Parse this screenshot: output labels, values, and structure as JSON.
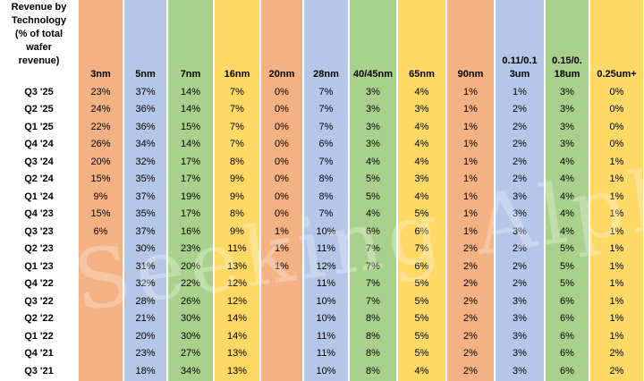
{
  "table": {
    "corner_label": "Revenue by\nTechnology\n(% of total\nwafer\nrevenue)",
    "columns": [
      {
        "label": "3nm",
        "color": "orange"
      },
      {
        "label": "5nm",
        "color": "blue"
      },
      {
        "label": "7nm",
        "color": "green"
      },
      {
        "label": "16nm",
        "color": "yellow"
      },
      {
        "label": "20nm",
        "color": "orange"
      },
      {
        "label": "28nm",
        "color": "blue"
      },
      {
        "label": "40/45nm",
        "color": "green"
      },
      {
        "label": "65nm",
        "color": "yellow"
      },
      {
        "label": "90nm",
        "color": "orange"
      },
      {
        "label": "0.11/0.1\n3um",
        "color": "blue"
      },
      {
        "label": "0.15/0.\n18um",
        "color": "green"
      },
      {
        "label": "0.25um+",
        "color": "yellow"
      }
    ],
    "rows": [
      {
        "period": "Q3 '25",
        "values": [
          "23%",
          "37%",
          "14%",
          "7%",
          "0%",
          "7%",
          "3%",
          "4%",
          "1%",
          "1%",
          "3%",
          "0%"
        ]
      },
      {
        "period": "Q2 '25",
        "values": [
          "24%",
          "36%",
          "14%",
          "7%",
          "0%",
          "7%",
          "3%",
          "3%",
          "1%",
          "2%",
          "3%",
          "0%"
        ]
      },
      {
        "period": "Q1 '25",
        "values": [
          "22%",
          "36%",
          "15%",
          "7%",
          "0%",
          "7%",
          "3%",
          "4%",
          "1%",
          "2%",
          "3%",
          "0%"
        ]
      },
      {
        "period": "Q4 '24",
        "values": [
          "26%",
          "34%",
          "14%",
          "7%",
          "0%",
          "6%",
          "3%",
          "4%",
          "1%",
          "2%",
          "3%",
          "0%"
        ]
      },
      {
        "period": "Q3 '24",
        "values": [
          "20%",
          "32%",
          "17%",
          "8%",
          "0%",
          "7%",
          "4%",
          "4%",
          "1%",
          "2%",
          "4%",
          "1%"
        ]
      },
      {
        "period": "Q2 '24",
        "values": [
          "15%",
          "35%",
          "17%",
          "9%",
          "0%",
          "8%",
          "5%",
          "3%",
          "1%",
          "2%",
          "4%",
          "1%"
        ]
      },
      {
        "period": "Q1 '24",
        "values": [
          "9%",
          "37%",
          "19%",
          "9%",
          "0%",
          "8%",
          "5%",
          "4%",
          "1%",
          "3%",
          "4%",
          "1%"
        ]
      },
      {
        "period": "Q4 '23",
        "values": [
          "15%",
          "35%",
          "17%",
          "8%",
          "0%",
          "7%",
          "4%",
          "5%",
          "1%",
          "3%",
          "4%",
          "1%"
        ]
      },
      {
        "period": "Q3 '23",
        "values": [
          "6%",
          "37%",
          "16%",
          "9%",
          "1%",
          "10%",
          "6%",
          "6%",
          "1%",
          "3%",
          "4%",
          "1%"
        ]
      },
      {
        "period": "Q2 '23",
        "values": [
          "",
          "30%",
          "23%",
          "11%",
          "1%",
          "11%",
          "7%",
          "7%",
          "2%",
          "2%",
          "5%",
          "1%"
        ]
      },
      {
        "period": "Q1 '23",
        "values": [
          "",
          "31%",
          "20%",
          "13%",
          "1%",
          "12%",
          "7%",
          "6%",
          "2%",
          "2%",
          "5%",
          "1%"
        ]
      },
      {
        "period": "Q4 '22",
        "values": [
          "",
          "32%",
          "22%",
          "12%",
          "",
          "11%",
          "7%",
          "5%",
          "2%",
          "2%",
          "5%",
          "1%"
        ]
      },
      {
        "period": "Q3 '22",
        "values": [
          "",
          "28%",
          "26%",
          "12%",
          "",
          "10%",
          "7%",
          "5%",
          "2%",
          "3%",
          "6%",
          "1%"
        ]
      },
      {
        "period": "Q2 '22",
        "values": [
          "",
          "21%",
          "30%",
          "14%",
          "",
          "10%",
          "8%",
          "5%",
          "2%",
          "3%",
          "6%",
          "1%"
        ]
      },
      {
        "period": "Q1 '22",
        "values": [
          "",
          "20%",
          "30%",
          "14%",
          "",
          "11%",
          "8%",
          "5%",
          "2%",
          "3%",
          "6%",
          "1%"
        ]
      },
      {
        "period": "Q4 '21",
        "values": [
          "",
          "23%",
          "27%",
          "13%",
          "",
          "11%",
          "8%",
          "5%",
          "2%",
          "3%",
          "6%",
          "2%"
        ]
      },
      {
        "period": "Q3 '21",
        "values": [
          "",
          "18%",
          "34%",
          "13%",
          "",
          "10%",
          "8%",
          "4%",
          "2%",
          "3%",
          "6%",
          "2%"
        ]
      }
    ]
  },
  "watermark": "Seeking Alpha"
}
